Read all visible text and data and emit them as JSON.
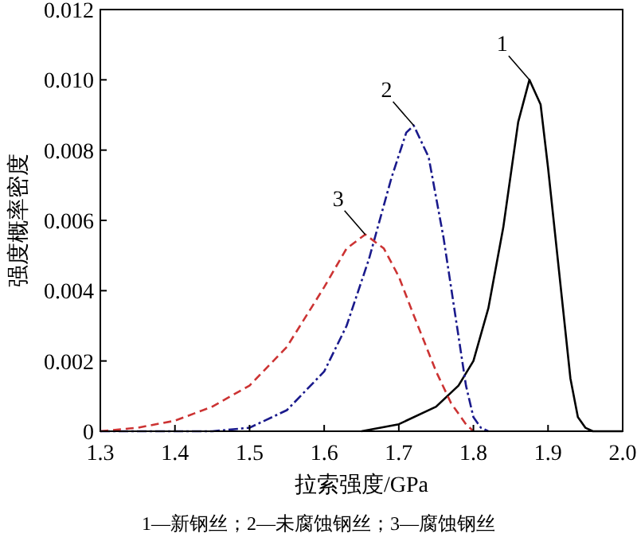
{
  "chart_data": {
    "type": "line",
    "xlabel": "拉索强度/GPa",
    "ylabel": "强度概率密度",
    "xlim": [
      1.3,
      2.0
    ],
    "ylim": [
      0,
      0.012
    ],
    "xticks": [
      1.3,
      1.4,
      1.5,
      1.6,
      1.7,
      1.8,
      1.9,
      {
        "value": 2,
        "label": "2.0"
      }
    ],
    "yticks": [
      0,
      0.002,
      0.004,
      0.006,
      0.008,
      {
        "value": 0.01,
        "label": "0.010"
      },
      0.012
    ],
    "grid": false,
    "series": [
      {
        "color": "#000000",
        "line_style": "solid",
        "x": [
          1.65,
          1.7,
          1.75,
          1.78,
          1.8,
          1.82,
          1.84,
          1.86,
          1.875,
          1.89,
          1.9,
          1.92,
          1.93,
          1.94,
          1.95,
          1.96,
          2.0
        ],
        "values": [
          0,
          0.0002,
          0.0007,
          0.0013,
          0.002,
          0.0035,
          0.0058,
          0.0088,
          0.01,
          0.0093,
          0.0075,
          0.0035,
          0.0015,
          0.0004,
          0.0001,
          0,
          0
        ]
      },
      {
        "color": "#1a1a8c",
        "line_style": "dashdot",
        "x": [
          1.3,
          1.45,
          1.5,
          1.55,
          1.6,
          1.63,
          1.66,
          1.69,
          1.71,
          1.72,
          1.74,
          1.76,
          1.78,
          1.79,
          1.8,
          1.81,
          1.82
        ],
        "values": [
          0,
          0,
          0.0001,
          0.0006,
          0.0017,
          0.003,
          0.0049,
          0.0072,
          0.0085,
          0.0087,
          0.0078,
          0.0055,
          0.0027,
          0.0013,
          0.0004,
          0.0001,
          0
        ]
      },
      {
        "color": "#cc3333",
        "line_style": "dashed",
        "x": [
          1.3,
          1.35,
          1.4,
          1.45,
          1.5,
          1.55,
          1.6,
          1.63,
          1.655,
          1.68,
          1.7,
          1.72,
          1.75,
          1.77,
          1.79,
          1.8
        ],
        "values": [
          0,
          0.0001,
          0.0003,
          0.0007,
          0.0013,
          0.0024,
          0.0041,
          0.0052,
          0.0056,
          0.0052,
          0.0044,
          0.0033,
          0.0017,
          0.0008,
          0.0002,
          0
        ]
      }
    ],
    "annotations": [
      {
        "text": "1",
        "x": 1.875,
        "y": 0.01
      },
      {
        "text": "2",
        "x": 1.72,
        "y": 0.0087
      },
      {
        "text": "3",
        "x": 1.655,
        "y": 0.0056
      },
      "1—新钢丝；2—未腐蚀钢丝；3—腐蚀钢丝"
    ]
  }
}
